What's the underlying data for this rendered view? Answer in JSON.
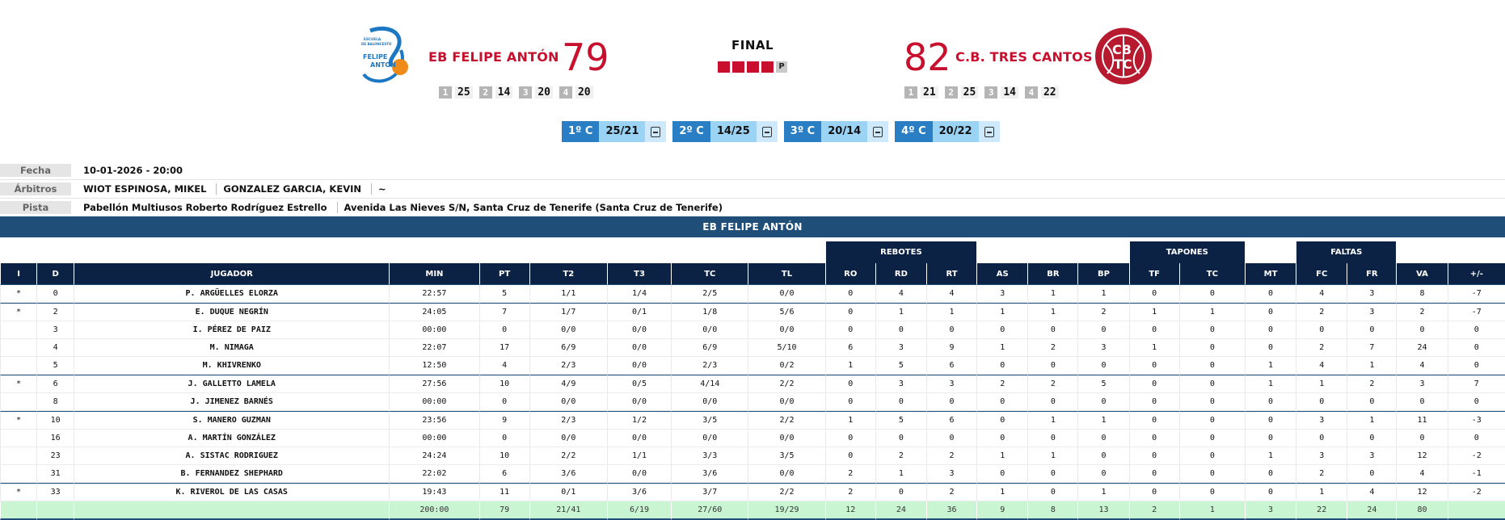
{
  "header": {
    "home": {
      "name": "EB FELIPE ANTÓN",
      "score": "79",
      "logo_text": [
        "ESCUELA",
        "DE BALONCESTO",
        "FELIPE",
        "ANTON"
      ],
      "quarters": [
        {
          "n": "1",
          "v": "25"
        },
        {
          "n": "2",
          "v": "14"
        },
        {
          "n": "3",
          "v": "20"
        },
        {
          "n": "4",
          "v": "20"
        }
      ]
    },
    "away": {
      "name": "C.B. TRES CANTOS",
      "score": "82",
      "logo_text": [
        "CB",
        "TC"
      ],
      "quarters": [
        {
          "n": "1",
          "v": "21"
        },
        {
          "n": "2",
          "v": "25"
        },
        {
          "n": "3",
          "v": "14"
        },
        {
          "n": "4",
          "v": "22"
        }
      ]
    },
    "status": "FINAL",
    "status_marker": "P",
    "periods": [
      {
        "label": "1º C",
        "score": "25/21"
      },
      {
        "label": "2º C",
        "score": "14/25"
      },
      {
        "label": "3º C",
        "score": "20/14"
      },
      {
        "label": "4º C",
        "score": "20/22"
      }
    ]
  },
  "info": {
    "fecha_label": "Fecha",
    "fecha": "10-01-2026 - 20:00",
    "arbitros_label": "Árbitros",
    "arbitro1": "WIOT ESPINOSA, MIKEL",
    "arbitro2": "GONZALEZ GARCIA, KEVIN",
    "arbitro3": "~",
    "pista_label": "Pista",
    "pista": "Pabellón Multiusos Roberto Rodríguez Estrello",
    "direccion": "Avenida Las Nieves S/N, Santa Cruz de Tenerife (Santa Cruz de Tenerife)"
  },
  "table": {
    "team": "EB FELIPE ANTÓN",
    "groups": {
      "rebotes": "REBOTES",
      "tapones": "TAPONES",
      "faltas": "FALTAS"
    },
    "columns": [
      "I",
      "D",
      "JUGADOR",
      "MIN",
      "PT",
      "T2",
      "T3",
      "TC",
      "TL",
      "RO",
      "RD",
      "RT",
      "AS",
      "BR",
      "BP",
      "TF",
      "TC",
      "MT",
      "FC",
      "FR",
      "VA",
      "+/-"
    ],
    "rows": [
      [
        "*",
        "0",
        "P. ARGÜELLES ELORZA",
        "22:57",
        "5",
        "1/1",
        "1/4",
        "2/5",
        "0/0",
        "0",
        "4",
        "4",
        "3",
        "1",
        "1",
        "0",
        "0",
        "0",
        "4",
        "3",
        "8",
        "-7"
      ],
      [
        "*",
        "2",
        "E. DUQUE NEGRÍN",
        "24:05",
        "7",
        "1/7",
        "0/1",
        "1/8",
        "5/6",
        "0",
        "1",
        "1",
        "1",
        "1",
        "2",
        "1",
        "1",
        "0",
        "2",
        "3",
        "2",
        "-7"
      ],
      [
        "",
        "3",
        "I. PÉREZ DE PAIZ",
        "00:00",
        "0",
        "0/0",
        "0/0",
        "0/0",
        "0/0",
        "0",
        "0",
        "0",
        "0",
        "0",
        "0",
        "0",
        "0",
        "0",
        "0",
        "0",
        "0",
        "0"
      ],
      [
        "",
        "4",
        "M. NIMAGA",
        "22:07",
        "17",
        "6/9",
        "0/0",
        "6/9",
        "5/10",
        "6",
        "3",
        "9",
        "1",
        "2",
        "3",
        "1",
        "0",
        "0",
        "2",
        "7",
        "24",
        "0"
      ],
      [
        "",
        "5",
        "M. KHIVRENKO",
        "12:50",
        "4",
        "2/3",
        "0/0",
        "2/3",
        "0/2",
        "1",
        "5",
        "6",
        "0",
        "0",
        "0",
        "0",
        "0",
        "1",
        "4",
        "1",
        "4",
        "0"
      ],
      [
        "*",
        "6",
        "J. GALLETTO LAMELA",
        "27:56",
        "10",
        "4/9",
        "0/5",
        "4/14",
        "2/2",
        "0",
        "3",
        "3",
        "2",
        "2",
        "5",
        "0",
        "0",
        "1",
        "1",
        "2",
        "3",
        "7"
      ],
      [
        "",
        "8",
        "J. JIMENEZ BARNÉS",
        "00:00",
        "0",
        "0/0",
        "0/0",
        "0/0",
        "0/0",
        "0",
        "0",
        "0",
        "0",
        "0",
        "0",
        "0",
        "0",
        "0",
        "0",
        "0",
        "0",
        "0"
      ],
      [
        "*",
        "10",
        "S. MANERO GUZMAN",
        "23:56",
        "9",
        "2/3",
        "1/2",
        "3/5",
        "2/2",
        "1",
        "5",
        "6",
        "0",
        "1",
        "1",
        "0",
        "0",
        "0",
        "3",
        "1",
        "11",
        "-3"
      ],
      [
        "",
        "16",
        "A. MARTÍN GONZÁLEZ",
        "00:00",
        "0",
        "0/0",
        "0/0",
        "0/0",
        "0/0",
        "0",
        "0",
        "0",
        "0",
        "0",
        "0",
        "0",
        "0",
        "0",
        "0",
        "0",
        "0",
        "0"
      ],
      [
        "",
        "23",
        "A. SISTAC RODRIGUEZ",
        "24:24",
        "10",
        "2/2",
        "1/1",
        "3/3",
        "3/5",
        "0",
        "2",
        "2",
        "1",
        "1",
        "0",
        "0",
        "0",
        "1",
        "3",
        "3",
        "12",
        "-2"
      ],
      [
        "",
        "31",
        "B. FERNANDEZ SHEPHARD",
        "22:02",
        "6",
        "3/6",
        "0/0",
        "3/6",
        "0/0",
        "2",
        "1",
        "3",
        "0",
        "0",
        "0",
        "0",
        "0",
        "0",
        "2",
        "0",
        "4",
        "-1"
      ],
      [
        "*",
        "33",
        "K. RIVEROL DE LAS CASAS",
        "19:43",
        "11",
        "0/1",
        "3/6",
        "3/7",
        "2/2",
        "2",
        "0",
        "2",
        "1",
        "0",
        "1",
        "0",
        "0",
        "0",
        "1",
        "4",
        "12",
        "-2"
      ]
    ],
    "totals": [
      "",
      "",
      "",
      "200:00",
      "79",
      "21/41",
      "6/19",
      "27/60",
      "19/29",
      "12",
      "24",
      "36",
      "9",
      "8",
      "13",
      "2",
      "1",
      "3",
      "22",
      "24",
      "80",
      ""
    ]
  }
}
